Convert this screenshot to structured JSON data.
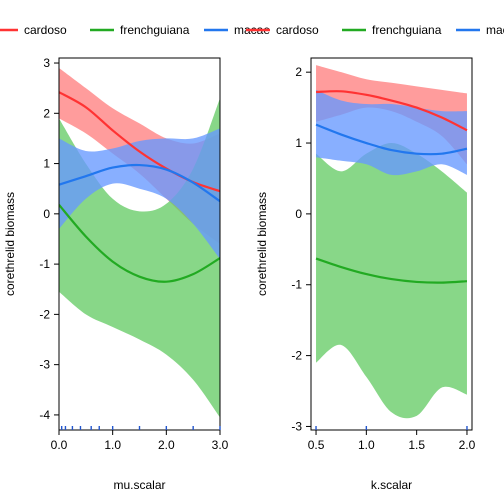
{
  "chart_data": [
    {
      "type": "line",
      "xlabel": "mu.scalar",
      "ylabel": "corethrelid biomass",
      "xlim": [
        0,
        3
      ],
      "ylim": [
        -4.3,
        3.1
      ],
      "xticks": [
        "0.0",
        "1.0",
        "2.0",
        "3.0"
      ],
      "yticks": [
        "-4",
        "-3",
        "-2",
        "-1",
        "0",
        "1",
        "2",
        "3"
      ],
      "rug": [
        0.05,
        0.12,
        0.25,
        0.4,
        0.6,
        0.75,
        1.0,
        1.5,
        2.0,
        2.5,
        3.0
      ],
      "legend": {
        "position": "top"
      },
      "series": [
        {
          "name": "cardoso",
          "color": "#ff3333",
          "band_color": "#ff8080",
          "x": [
            0,
            0.5,
            1.0,
            1.5,
            2.0,
            2.5,
            3.0
          ],
          "y": [
            2.42,
            2.12,
            1.66,
            1.24,
            0.9,
            0.63,
            0.45
          ],
          "lower": [
            1.9,
            1.6,
            1.2,
            0.8,
            0.3,
            -0.2,
            -0.6
          ],
          "upper": [
            2.9,
            2.5,
            2.1,
            1.8,
            1.5,
            1.4,
            1.6
          ]
        },
        {
          "name": "frenchguiana",
          "color": "#22aa22",
          "band_color": "#66cc66",
          "x": [
            0,
            0.5,
            1.0,
            1.5,
            2.0,
            2.5,
            3.0
          ],
          "y": [
            0.18,
            -0.45,
            -0.95,
            -1.25,
            -1.35,
            -1.2,
            -0.88
          ],
          "lower": [
            -1.55,
            -2.0,
            -2.25,
            -2.5,
            -2.8,
            -3.3,
            -4.05
          ],
          "upper": [
            1.9,
            1.0,
            0.3,
            0.05,
            0.2,
            0.9,
            2.3
          ]
        },
        {
          "name": "macae",
          "color": "#2277ee",
          "band_color": "#6699ff",
          "x": [
            0,
            0.5,
            1.0,
            1.5,
            2.0,
            2.5,
            3.0
          ],
          "y": [
            0.58,
            0.75,
            0.92,
            0.97,
            0.88,
            0.62,
            0.25
          ],
          "lower": [
            -0.3,
            0.3,
            0.6,
            0.5,
            0.3,
            -0.2,
            -0.9
          ],
          "upper": [
            1.5,
            1.25,
            1.3,
            1.45,
            1.5,
            1.5,
            1.7
          ]
        }
      ]
    },
    {
      "type": "line",
      "xlabel": "k.scalar",
      "ylabel": "corethrelid biomass",
      "xlim": [
        0.45,
        2.05
      ],
      "ylim": [
        -3.05,
        2.2
      ],
      "xticks": [
        "0.5",
        "1.0",
        "1.5",
        "2.0"
      ],
      "yticks": [
        "-3",
        "-2",
        "-1",
        "0",
        "1",
        "2"
      ],
      "rug": [
        0.5,
        1.0,
        2.0
      ],
      "legend": {
        "position": "top"
      },
      "series": [
        {
          "name": "cardoso",
          "color": "#ff3333",
          "band_color": "#ff8080",
          "x": [
            0.5,
            0.75,
            1.0,
            1.25,
            1.5,
            1.75,
            2.0
          ],
          "y": [
            1.72,
            1.73,
            1.68,
            1.6,
            1.5,
            1.36,
            1.18
          ],
          "lower": [
            1.3,
            1.4,
            1.5,
            1.45,
            1.3,
            1.1,
            0.7
          ],
          "upper": [
            2.1,
            2.0,
            1.9,
            1.85,
            1.8,
            1.75,
            1.7
          ]
        },
        {
          "name": "frenchguiana",
          "color": "#22aa22",
          "band_color": "#66cc66",
          "x": [
            0.5,
            0.75,
            1.0,
            1.25,
            1.5,
            1.75,
            2.0
          ],
          "y": [
            -0.63,
            -0.75,
            -0.85,
            -0.92,
            -0.96,
            -0.97,
            -0.95
          ],
          "lower": [
            -2.1,
            -1.85,
            -2.3,
            -2.8,
            -2.85,
            -2.45,
            -2.55
          ],
          "upper": [
            0.85,
            0.6,
            0.85,
            1.0,
            0.85,
            0.6,
            0.3
          ]
        },
        {
          "name": "macae",
          "color": "#2277ee",
          "band_color": "#6699ff",
          "x": [
            0.5,
            0.75,
            1.0,
            1.25,
            1.5,
            1.75,
            2.0
          ],
          "y": [
            1.26,
            1.12,
            1.0,
            0.9,
            0.85,
            0.85,
            0.92
          ],
          "lower": [
            0.8,
            0.75,
            0.7,
            0.55,
            0.6,
            0.7,
            0.55
          ],
          "upper": [
            1.75,
            1.6,
            1.55,
            1.55,
            1.5,
            1.45,
            1.45
          ]
        }
      ]
    }
  ]
}
